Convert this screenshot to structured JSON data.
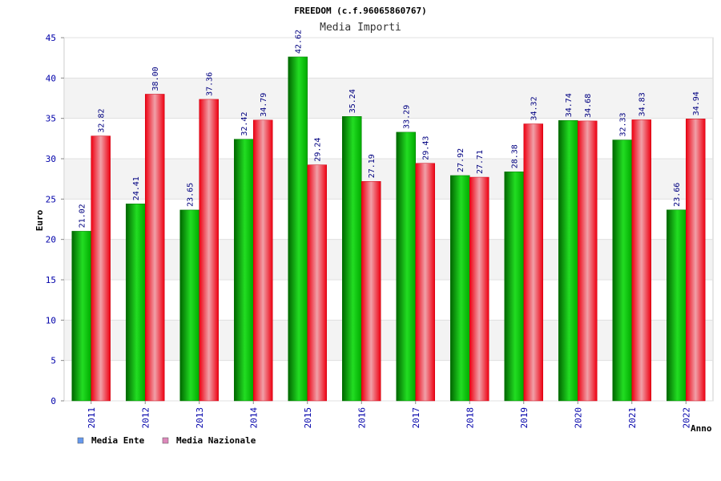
{
  "chart_data": {
    "type": "bar",
    "title": "FREEDOM (c.f.96065860767)",
    "subtitle": "Media Importi",
    "xlabel": "Anno",
    "ylabel": "Euro",
    "ylim": [
      0,
      45
    ],
    "yticks": [
      0,
      5,
      10,
      15,
      20,
      25,
      30,
      35,
      40,
      45
    ],
    "grid": true,
    "legend_position": "bottom-left",
    "categories": [
      "2011",
      "2012",
      "2013",
      "2014",
      "2015",
      "2016",
      "2017",
      "2018",
      "2019",
      "2020",
      "2021",
      "2022"
    ],
    "series": [
      {
        "name": "Media Ente",
        "color": "#00aa00",
        "legend_color": "#6699ee",
        "values": [
          21.02,
          24.41,
          23.65,
          32.42,
          42.62,
          35.24,
          33.29,
          27.92,
          28.38,
          34.74,
          32.33,
          23.66
        ],
        "labels": [
          "21.02",
          "24.41",
          "23.65",
          "32.42",
          "42.62",
          "35.24",
          "33.29",
          "27.92",
          "28.38",
          "34.74",
          "32.33",
          "23.66"
        ]
      },
      {
        "name": "Media Nazionale",
        "color": "#ee1122",
        "legend_color": "#dd88bb",
        "values": [
          32.82,
          38.0,
          37.36,
          34.79,
          29.24,
          27.19,
          29.43,
          27.71,
          34.32,
          34.68,
          34.83,
          34.94
        ],
        "labels": [
          "32.82",
          "38.00",
          "37.36",
          "34.79",
          "29.24",
          "27.19",
          "29.43",
          "27.71",
          "34.32",
          "34.68",
          "34.83",
          "34.94"
        ]
      }
    ]
  }
}
